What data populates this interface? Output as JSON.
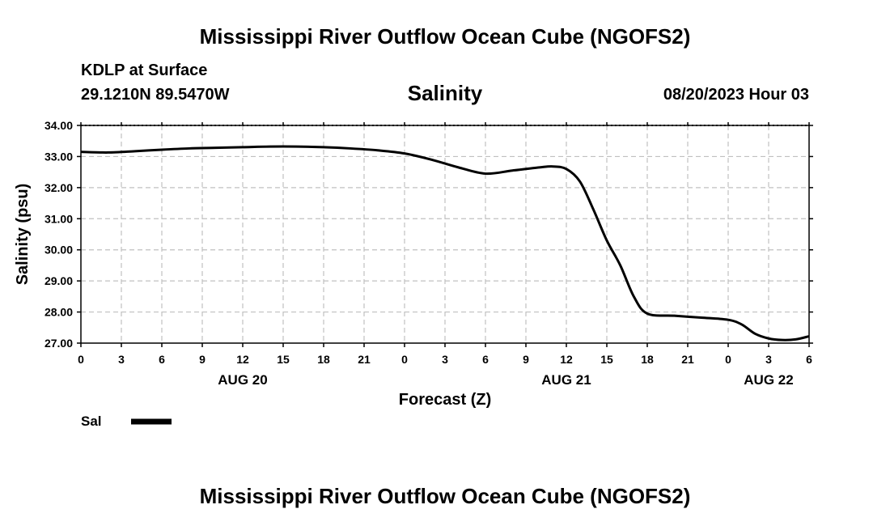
{
  "header": {
    "title": "Mississippi River Outflow Ocean Cube (NGOFS2)",
    "station": "KDLP at Surface",
    "coords": "29.1210N  89.5470W",
    "datetime": "08/20/2023 Hour 03"
  },
  "footer": {
    "title": "Mississippi River Outflow Ocean Cube (NGOFS2)"
  },
  "colors": {
    "line": "#000000",
    "grid": "#c0c0c0",
    "background": "#ffffff"
  },
  "chart_data": {
    "type": "line",
    "title": "Salinity",
    "xlabel": "Forecast (Z)",
    "ylabel": "Salinity (psu)",
    "xlim": [
      0,
      54
    ],
    "ylim": [
      27.0,
      34.0
    ],
    "grid": true,
    "legend": "bottom-left",
    "x_ticks": [
      0,
      3,
      6,
      9,
      12,
      15,
      18,
      21,
      24,
      27,
      30,
      33,
      36,
      39,
      42,
      45,
      48,
      51,
      54
    ],
    "x_tick_labels": [
      "0",
      "3",
      "6",
      "9",
      "12",
      "15",
      "18",
      "21",
      "0",
      "3",
      "6",
      "9",
      "12",
      "15",
      "18",
      "21",
      "0",
      "3",
      "6"
    ],
    "y_ticks": [
      27,
      28,
      29,
      30,
      31,
      32,
      33,
      34
    ],
    "y_tick_labels": [
      "27.00",
      "28.00",
      "29.00",
      "30.00",
      "31.00",
      "32.00",
      "33.00",
      "34.00"
    ],
    "date_labels": [
      {
        "x": 12,
        "text": "AUG 20"
      },
      {
        "x": 36,
        "text": "AUG 21"
      },
      {
        "x": 51,
        "text": "AUG 22"
      }
    ],
    "series": [
      {
        "name": "Sal",
        "x": [
          0,
          2,
          4,
          6,
          8,
          10,
          12,
          14,
          16,
          18,
          20,
          22,
          24,
          26,
          28,
          30,
          32,
          34,
          35,
          36,
          37,
          38,
          39,
          40,
          41,
          42,
          44,
          46,
          48,
          49,
          50,
          51,
          52,
          53,
          54
        ],
        "values": [
          33.15,
          33.13,
          33.17,
          33.22,
          33.26,
          33.28,
          33.3,
          33.32,
          33.32,
          33.3,
          33.26,
          33.2,
          33.1,
          32.9,
          32.65,
          32.45,
          32.55,
          32.65,
          32.68,
          32.6,
          32.2,
          31.3,
          30.3,
          29.5,
          28.5,
          27.95,
          27.88,
          27.82,
          27.75,
          27.6,
          27.3,
          27.15,
          27.1,
          27.12,
          27.22
        ]
      }
    ]
  }
}
